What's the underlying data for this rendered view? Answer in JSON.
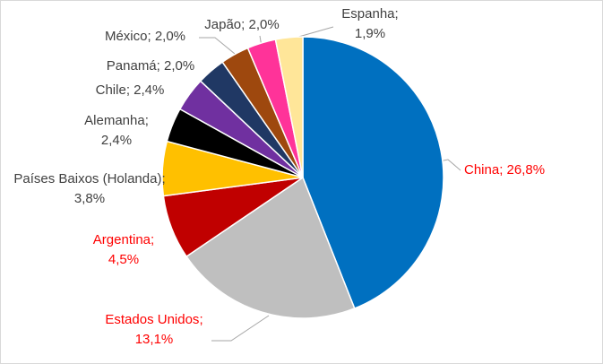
{
  "chart_data": {
    "type": "pie",
    "categories": [
      "China",
      "Estados Unidos",
      "Argentina",
      "Países Baixos (Holanda)",
      "Alemanha",
      "Chile",
      "Panamá",
      "México",
      "Japão",
      "Espanha"
    ],
    "values": [
      26.8,
      13.1,
      4.5,
      3.8,
      2.4,
      2.4,
      2.0,
      2.0,
      2.0,
      1.9
    ],
    "value_labels": [
      "26,8%",
      "13,1%",
      "4,5%",
      "3,8%",
      "2,4%",
      "2,4%",
      "2,0%",
      "2,0%",
      "2,0%",
      "1,9%"
    ],
    "label_separator": "; ",
    "colors": [
      "#0070c0",
      "#bfbfbf",
      "#c00000",
      "#ffc000",
      "#000000",
      "#7030a0",
      "#203864",
      "#9e480e",
      "#ff3399",
      "#ffe699"
    ],
    "label_colors": [
      "#ff0000",
      "#ff0000",
      "#ff0000",
      "#404040",
      "#404040",
      "#404040",
      "#404040",
      "#404040",
      "#404040",
      "#404040"
    ]
  }
}
